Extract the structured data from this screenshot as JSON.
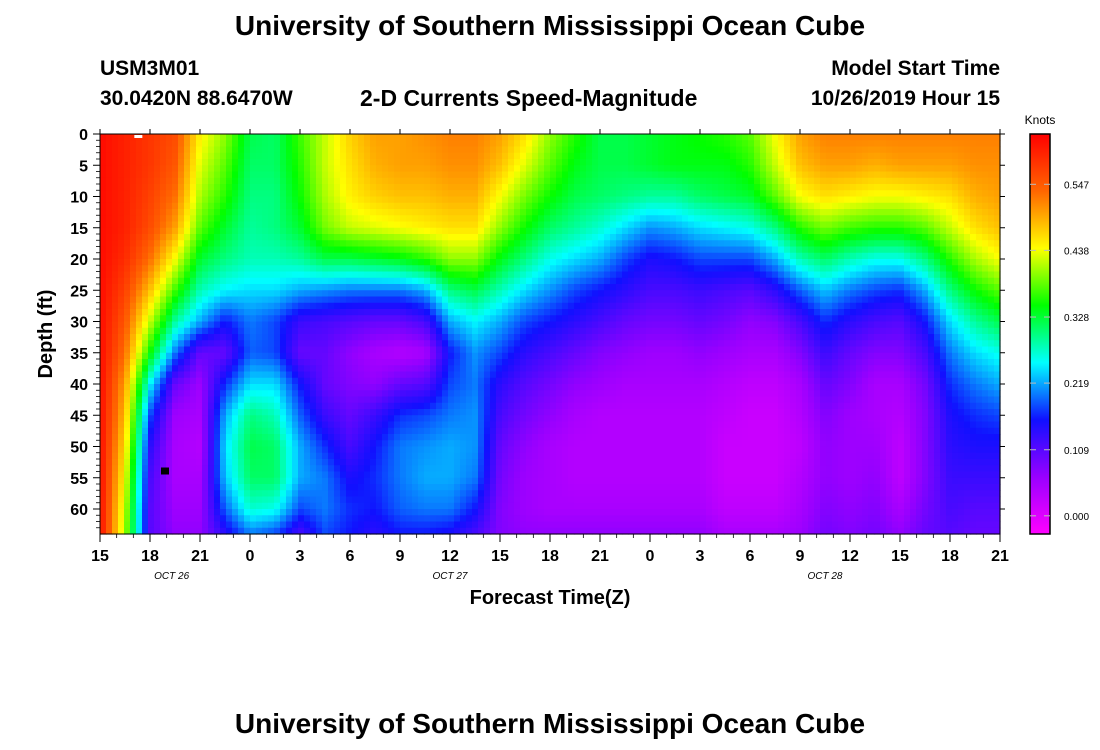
{
  "header": {
    "title": "University of Southern Mississippi Ocean Cube",
    "station_id": "USM3M01",
    "coords": "30.0420N 88.6470W",
    "product": "2-D Currents Speed-Magnitude",
    "start_label": "Model Start Time",
    "start_value": "10/26/2019 Hour 15"
  },
  "footer": {
    "title": "University of Southern Mississippi Ocean Cube"
  },
  "chart_data": {
    "type": "heatmap",
    "title": "2-D Currents Speed-Magnitude",
    "xlabel": "Forecast Time(Z)",
    "ylabel": "Depth (ft)",
    "x_tick_labels": [
      "15",
      "18",
      "21",
      "0",
      "3",
      "6",
      "9",
      "12",
      "15",
      "18",
      "21",
      "0",
      "3",
      "6",
      "9",
      "12",
      "15",
      "18",
      "21"
    ],
    "x_hours": [
      0,
      3,
      6,
      9,
      12,
      15,
      18,
      21,
      24,
      27,
      30,
      33,
      36,
      39,
      42,
      45,
      48,
      51,
      54
    ],
    "date_labels": [
      {
        "text": "OCT 26",
        "hour": 4.3
      },
      {
        "text": "OCT 27",
        "hour": 21.0
      },
      {
        "text": "OCT 28",
        "hour": 43.5
      }
    ],
    "y_ticks": [
      0,
      5,
      10,
      15,
      20,
      25,
      30,
      35,
      40,
      45,
      50,
      55,
      60
    ],
    "ylim": [
      0,
      64
    ],
    "xlim": [
      0,
      54
    ],
    "colorbar": {
      "label": "Knots",
      "ticks": [
        0.0,
        0.109,
        0.219,
        0.328,
        0.438,
        0.547
      ],
      "tick_labels": [
        "0.000",
        "0.109",
        "0.219",
        "0.328",
        "0.438",
        "0.547"
      ],
      "range": [
        -0.03,
        0.63
      ],
      "colors": [
        "#ff00ff",
        "#9900ff",
        "#1010ff",
        "#00ffff",
        "#00ff00",
        "#ffff00",
        "#ff6600",
        "#ff0000"
      ]
    },
    "grid_hours": [
      0,
      1.5,
      3,
      4.5,
      6,
      7.5,
      9,
      10.5,
      12,
      13.5,
      15,
      16.5,
      18,
      19.5,
      21,
      22.5,
      24,
      25.5,
      27,
      28.5,
      30,
      31.5,
      33,
      34.5,
      36,
      37.5,
      39,
      40.5,
      42,
      43.5,
      45,
      46.5,
      48,
      49.5,
      51,
      52.5,
      54
    ],
    "grid_depths": [
      0,
      5,
      10,
      15,
      20,
      25,
      30,
      35,
      40,
      45,
      50,
      55,
      60,
      64
    ],
    "speed_knots": [
      [
        0.62,
        0.62,
        0.62,
        0.62,
        0.62,
        0.62,
        0.62,
        0.62,
        0.62,
        0.62,
        0.62,
        0.62,
        0.62,
        0.62
      ],
      [
        0.6,
        0.6,
        0.6,
        0.6,
        0.59,
        0.57,
        0.55,
        0.53,
        0.5,
        0.48,
        0.46,
        0.44,
        0.42,
        0.41
      ],
      [
        0.58,
        0.58,
        0.57,
        0.56,
        0.53,
        0.48,
        0.42,
        0.35,
        0.25,
        0.18,
        0.14,
        0.12,
        0.11,
        0.11
      ],
      [
        0.56,
        0.55,
        0.53,
        0.5,
        0.44,
        0.37,
        0.29,
        0.2,
        0.1,
        0.06,
        0.05,
        0.05,
        0.06,
        0.07
      ],
      [
        0.45,
        0.43,
        0.41,
        0.38,
        0.33,
        0.28,
        0.22,
        0.1,
        0.06,
        0.05,
        0.04,
        0.05,
        0.06,
        0.07
      ],
      [
        0.4,
        0.38,
        0.36,
        0.33,
        0.3,
        0.25,
        0.16,
        0.1,
        0.17,
        0.22,
        0.24,
        0.23,
        0.19,
        0.14
      ],
      [
        0.32,
        0.31,
        0.3,
        0.29,
        0.28,
        0.24,
        0.2,
        0.19,
        0.24,
        0.3,
        0.32,
        0.31,
        0.27,
        0.2
      ],
      [
        0.31,
        0.31,
        0.3,
        0.3,
        0.28,
        0.24,
        0.18,
        0.18,
        0.24,
        0.28,
        0.31,
        0.31,
        0.26,
        0.18
      ],
      [
        0.37,
        0.36,
        0.35,
        0.33,
        0.29,
        0.22,
        0.13,
        0.1,
        0.16,
        0.19,
        0.22,
        0.22,
        0.18,
        0.12
      ],
      [
        0.42,
        0.42,
        0.41,
        0.39,
        0.32,
        0.21,
        0.12,
        0.1,
        0.1,
        0.13,
        0.17,
        0.2,
        0.2,
        0.18
      ],
      [
        0.47,
        0.46,
        0.45,
        0.42,
        0.32,
        0.2,
        0.11,
        0.07,
        0.08,
        0.1,
        0.12,
        0.15,
        0.17,
        0.16
      ],
      [
        0.5,
        0.49,
        0.47,
        0.43,
        0.33,
        0.2,
        0.1,
        0.05,
        0.07,
        0.13,
        0.16,
        0.17,
        0.16,
        0.14
      ],
      [
        0.5,
        0.5,
        0.48,
        0.44,
        0.34,
        0.2,
        0.1,
        0.04,
        0.1,
        0.17,
        0.2,
        0.2,
        0.19,
        0.16
      ],
      [
        0.51,
        0.5,
        0.48,
        0.45,
        0.36,
        0.22,
        0.12,
        0.05,
        0.11,
        0.18,
        0.21,
        0.22,
        0.2,
        0.16
      ],
      [
        0.52,
        0.51,
        0.49,
        0.46,
        0.4,
        0.3,
        0.22,
        0.16,
        0.18,
        0.2,
        0.22,
        0.22,
        0.2,
        0.15
      ],
      [
        0.52,
        0.51,
        0.49,
        0.46,
        0.4,
        0.32,
        0.25,
        0.21,
        0.2,
        0.21,
        0.21,
        0.2,
        0.16,
        0.12
      ],
      [
        0.5,
        0.48,
        0.44,
        0.4,
        0.34,
        0.28,
        0.22,
        0.18,
        0.14,
        0.12,
        0.1,
        0.09,
        0.08,
        0.08
      ],
      [
        0.46,
        0.43,
        0.39,
        0.35,
        0.3,
        0.24,
        0.18,
        0.14,
        0.11,
        0.09,
        0.07,
        0.06,
        0.06,
        0.07
      ],
      [
        0.4,
        0.38,
        0.35,
        0.31,
        0.26,
        0.21,
        0.16,
        0.12,
        0.09,
        0.07,
        0.05,
        0.05,
        0.05,
        0.07
      ],
      [
        0.36,
        0.34,
        0.32,
        0.29,
        0.24,
        0.18,
        0.14,
        0.1,
        0.07,
        0.05,
        0.04,
        0.04,
        0.05,
        0.07
      ],
      [
        0.32,
        0.32,
        0.31,
        0.27,
        0.22,
        0.16,
        0.12,
        0.08,
        0.06,
        0.04,
        0.04,
        0.04,
        0.05,
        0.07
      ],
      [
        0.32,
        0.32,
        0.3,
        0.24,
        0.18,
        0.14,
        0.1,
        0.07,
        0.05,
        0.04,
        0.04,
        0.04,
        0.05,
        0.07
      ],
      [
        0.33,
        0.33,
        0.29,
        0.21,
        0.15,
        0.12,
        0.09,
        0.06,
        0.05,
        0.04,
        0.04,
        0.04,
        0.05,
        0.07
      ],
      [
        0.34,
        0.34,
        0.29,
        0.22,
        0.16,
        0.12,
        0.09,
        0.06,
        0.05,
        0.04,
        0.04,
        0.04,
        0.05,
        0.07
      ],
      [
        0.35,
        0.34,
        0.31,
        0.24,
        0.18,
        0.13,
        0.1,
        0.07,
        0.05,
        0.04,
        0.04,
        0.04,
        0.05,
        0.07
      ],
      [
        0.36,
        0.34,
        0.32,
        0.25,
        0.18,
        0.12,
        0.09,
        0.06,
        0.04,
        0.03,
        0.02,
        0.02,
        0.03,
        0.05
      ],
      [
        0.38,
        0.36,
        0.33,
        0.26,
        0.18,
        0.11,
        0.07,
        0.05,
        0.03,
        0.02,
        0.02,
        0.02,
        0.03,
        0.05
      ],
      [
        0.44,
        0.42,
        0.38,
        0.3,
        0.22,
        0.14,
        0.08,
        0.05,
        0.03,
        0.02,
        0.02,
        0.02,
        0.03,
        0.05
      ],
      [
        0.5,
        0.48,
        0.44,
        0.36,
        0.28,
        0.19,
        0.12,
        0.08,
        0.05,
        0.04,
        0.03,
        0.04,
        0.05,
        0.06
      ],
      [
        0.52,
        0.5,
        0.46,
        0.39,
        0.31,
        0.23,
        0.17,
        0.13,
        0.1,
        0.08,
        0.07,
        0.07,
        0.08,
        0.09
      ],
      [
        0.52,
        0.5,
        0.45,
        0.37,
        0.28,
        0.2,
        0.14,
        0.1,
        0.08,
        0.06,
        0.06,
        0.06,
        0.07,
        0.08
      ],
      [
        0.52,
        0.49,
        0.44,
        0.36,
        0.26,
        0.18,
        0.12,
        0.08,
        0.05,
        0.05,
        0.06,
        0.07,
        0.08,
        0.09
      ],
      [
        0.52,
        0.5,
        0.44,
        0.36,
        0.26,
        0.17,
        0.11,
        0.08,
        0.05,
        0.04,
        0.03,
        0.03,
        0.05,
        0.07
      ],
      [
        0.52,
        0.5,
        0.45,
        0.38,
        0.3,
        0.22,
        0.16,
        0.12,
        0.09,
        0.08,
        0.08,
        0.08,
        0.09,
        0.1
      ],
      [
        0.52,
        0.5,
        0.46,
        0.42,
        0.36,
        0.3,
        0.24,
        0.2,
        0.17,
        0.15,
        0.14,
        0.13,
        0.12,
        0.11
      ],
      [
        0.52,
        0.51,
        0.49,
        0.46,
        0.41,
        0.35,
        0.29,
        0.24,
        0.2,
        0.17,
        0.15,
        0.13,
        0.11,
        0.1
      ],
      [
        0.52,
        0.51,
        0.5,
        0.48,
        0.44,
        0.38,
        0.32,
        0.26,
        0.22,
        0.18,
        0.15,
        0.13,
        0.11,
        0.1
      ]
    ]
  }
}
